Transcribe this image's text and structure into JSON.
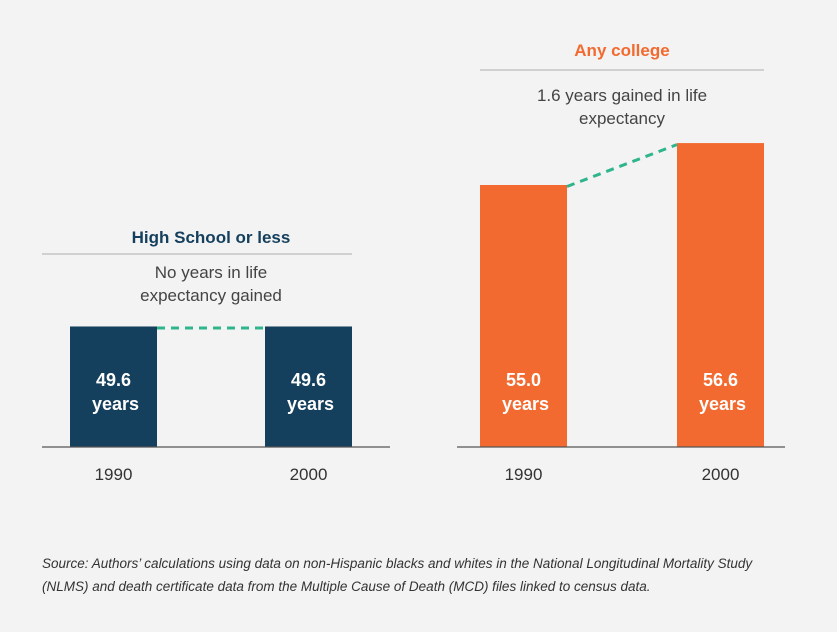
{
  "chart_data": [
    {
      "type": "bar",
      "title": "High School or less",
      "annotation": "No years in life expectancy gained",
      "categories": [
        "1990",
        "2000"
      ],
      "values": [
        49.6,
        49.6
      ],
      "value_labels": [
        "49.6 years",
        "49.6 years"
      ],
      "color": "#143f5d",
      "title_color": "#143f5d",
      "connector_color": "#2fb58c",
      "ylim": [
        45,
        57
      ]
    },
    {
      "type": "bar",
      "title": "Any college",
      "annotation": "1.6 years gained in life expectancy",
      "categories": [
        "1990",
        "2000"
      ],
      "values": [
        55.0,
        56.6
      ],
      "value_labels": [
        "55.0 years",
        "56.6 years"
      ],
      "color": "#f26a2f",
      "title_color": "#f26a2f",
      "connector_color": "#2fb58c",
      "ylim": [
        45,
        57
      ]
    }
  ],
  "source": "Source: Authors’ calculations using data on non-Hispanic blacks and whites in the National Longitudinal Mortality Study (NLMS) and death certificate data from the Multiple Cause of Death (MCD) files linked to census data."
}
